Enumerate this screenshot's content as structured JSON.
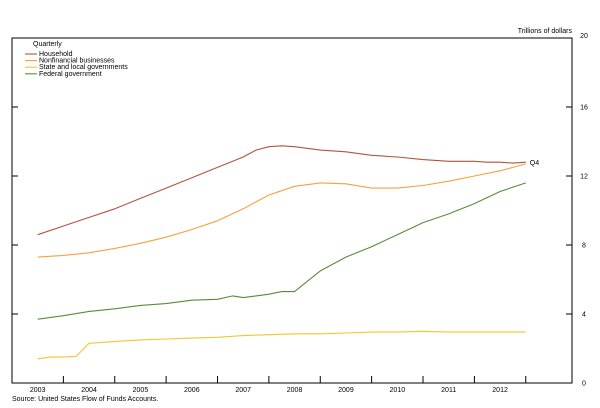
{
  "chart_data": {
    "type": "line",
    "frequency_label": "Quarterly",
    "units_label": "Trillions of dollars",
    "source": "Source: United States Flow of Funds Accounts.",
    "end_label": "Q4",
    "ylim": [
      0,
      20
    ],
    "yticks": [
      "0",
      "4",
      "8",
      "12",
      "16",
      "20"
    ],
    "xlim": [
      2002.5,
      2013.4
    ],
    "year_labels": [
      "2003",
      "2004",
      "2005",
      "2006",
      "2007",
      "2008",
      "2009",
      "2010",
      "2011",
      "2012"
    ],
    "legend_position": "top-left",
    "grid": false,
    "series": [
      {
        "name": "Household",
        "color": "#b0553a",
        "x": [
          2003.0,
          2003.5,
          2004.0,
          2004.5,
          2005.0,
          2005.5,
          2006.0,
          2006.5,
          2007.0,
          2007.25,
          2007.5,
          2007.75,
          2008.0,
          2008.5,
          2009.0,
          2009.5,
          2010.0,
          2010.5,
          2011.0,
          2011.5,
          2011.75,
          2012.0,
          2012.25,
          2012.5
        ],
        "y": [
          8.6,
          9.1,
          9.6,
          10.1,
          10.7,
          11.3,
          11.9,
          12.5,
          13.1,
          13.5,
          13.7,
          13.75,
          13.7,
          13.5,
          13.4,
          13.2,
          13.1,
          12.95,
          12.85,
          12.85,
          12.8,
          12.8,
          12.75,
          12.8
        ]
      },
      {
        "name": "Nonfinancial businesses",
        "color": "#f6a23c",
        "x": [
          2003.0,
          2003.5,
          2004.0,
          2004.5,
          2005.0,
          2005.5,
          2006.0,
          2006.5,
          2007.0,
          2007.5,
          2008.0,
          2008.5,
          2009.0,
          2009.5,
          2010.0,
          2010.5,
          2011.0,
          2011.5,
          2012.0,
          2012.5
        ],
        "y": [
          7.3,
          7.4,
          7.55,
          7.8,
          8.1,
          8.45,
          8.9,
          9.4,
          10.1,
          10.9,
          11.4,
          11.6,
          11.55,
          11.3,
          11.3,
          11.45,
          11.7,
          12.0,
          12.3,
          12.7
        ]
      },
      {
        "name": "State and local governments",
        "color": "#f2c62e",
        "x": [
          2003.0,
          2003.25,
          2003.5,
          2003.75,
          2004.0,
          2004.5,
          2005.0,
          2005.5,
          2006.0,
          2006.5,
          2007.0,
          2007.5,
          2008.0,
          2008.5,
          2009.0,
          2009.5,
          2010.0,
          2010.5,
          2011.0,
          2011.5,
          2012.0,
          2012.5
        ],
        "y": [
          1.4,
          1.5,
          1.5,
          1.55,
          2.3,
          2.4,
          2.5,
          2.55,
          2.6,
          2.65,
          2.75,
          2.8,
          2.85,
          2.85,
          2.9,
          2.95,
          2.95,
          3.0,
          2.95,
          2.95,
          2.95,
          2.95
        ]
      },
      {
        "name": "Federal government",
        "color": "#5c8a3a",
        "x": [
          2003.0,
          2003.5,
          2004.0,
          2004.5,
          2005.0,
          2005.5,
          2006.0,
          2006.5,
          2006.8,
          2007.0,
          2007.25,
          2007.5,
          2007.75,
          2008.0,
          2008.25,
          2008.5,
          2008.75,
          2009.0,
          2009.5,
          2010.0,
          2010.5,
          2011.0,
          2011.5,
          2012.0,
          2012.5
        ],
        "y": [
          3.7,
          3.9,
          4.15,
          4.3,
          4.5,
          4.6,
          4.8,
          4.85,
          5.05,
          4.95,
          5.05,
          5.15,
          5.3,
          5.3,
          5.9,
          6.5,
          6.9,
          7.3,
          7.9,
          8.6,
          9.3,
          9.8,
          10.4,
          11.1,
          11.6
        ]
      }
    ]
  }
}
